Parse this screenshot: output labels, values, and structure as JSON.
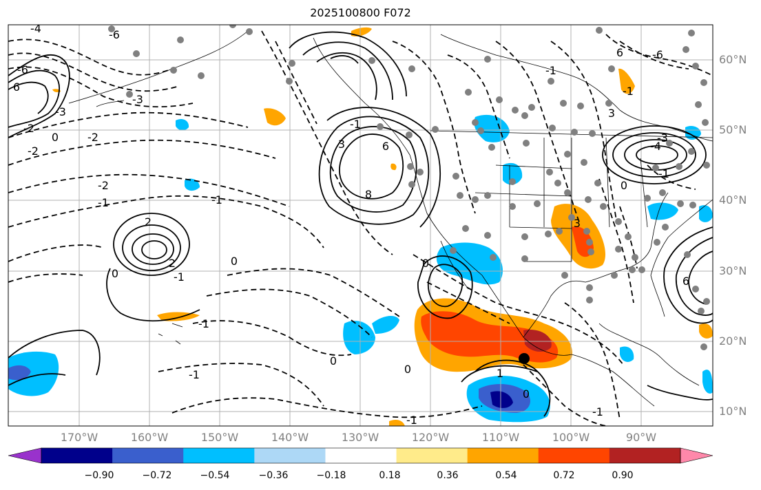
{
  "title": "2025100800 F072",
  "latitude_labels": [
    "60°N",
    "50°N",
    "40°N",
    "30°N",
    "20°N",
    "10°N"
  ],
  "longitude_labels": [
    "170°W",
    "160°W",
    "150°W",
    "140°W",
    "130°W",
    "120°W",
    "110°W",
    "100°W",
    "90°W"
  ],
  "colorbar": {
    "ticks": [
      "−0.90",
      "−0.72",
      "−0.54",
      "−0.36",
      "−0.18",
      "0.18",
      "0.36",
      "0.54",
      "0.72",
      "0.90"
    ],
    "colors": [
      "#9932cc",
      "#00008b",
      "#3a5fcd",
      "#00bfff",
      "#add8f6",
      "#ffffff",
      "#ffeb8a",
      "#ffa500",
      "#ff4500",
      "#b22222",
      "#ff88aa"
    ]
  },
  "contour_labels": [
    "-4",
    "-6",
    "-6",
    "-3",
    "-3",
    "-2",
    "-2",
    "0",
    "-2",
    "6",
    "-1",
    "-2",
    "-1",
    "2",
    "2",
    "-1",
    "0",
    "0",
    "-1",
    "-1",
    "3",
    "6",
    "8",
    "0",
    "-1",
    "1",
    "-1",
    "0",
    "0",
    "0",
    "3",
    "-1",
    "-1",
    "-6",
    "-4",
    "-3",
    "0",
    "3",
    "-1",
    "6",
    "6",
    "-1"
  ],
  "colors": {
    "gridline": "#b0b0b0",
    "coast": "#000000",
    "station_dot": "#808080",
    "marker": "#000000"
  }
}
